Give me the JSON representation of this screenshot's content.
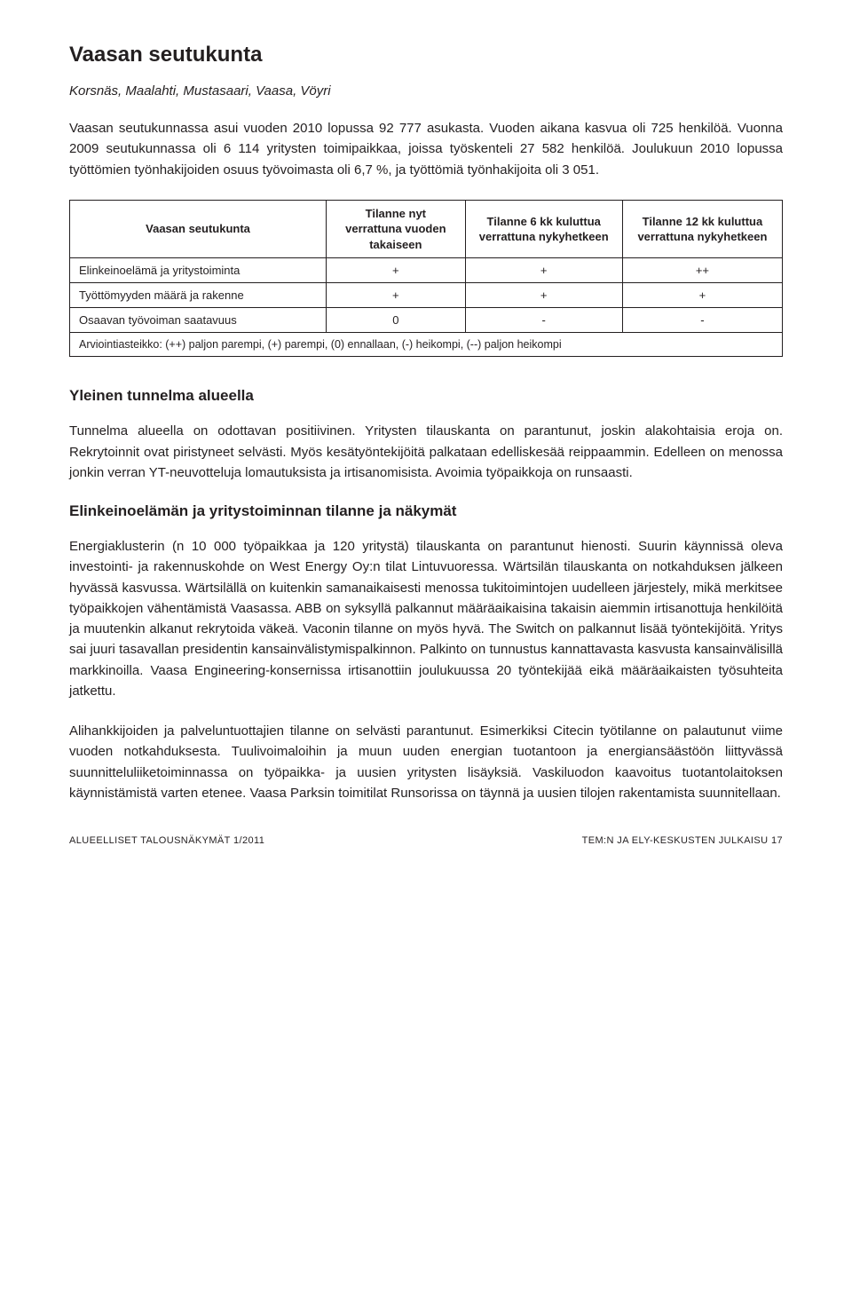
{
  "title": "Vaasan seutukunta",
  "municipalities": "Korsnäs, Maalahti, Mustasaari, Vaasa, Vöyri",
  "intro_para1": "Vaasan seutukunnassa asui vuoden 2010 lopussa 92 777 asukasta. Vuoden aikana kasvua oli 725 henkilöä. Vuonna 2009 seutukunnassa oli 6 114 yritysten toimipaikkaa, joissa työskenteli 27 582 henkilöä. Joulukuun 2010 lopussa työttömien työnhakijoiden osuus työvoimasta oli 6,7 %, ja työttömiä työnhakijoita oli 3 051.",
  "table": {
    "row_header": "Vaasan seutukunta",
    "col_headers": [
      "Tilanne nyt verrattuna vuoden takaiseen",
      "Tilanne 6 kk kuluttua verrattuna nykyhetkeen",
      "Tilanne 12 kk kuluttua verrattuna nykyhetkeen"
    ],
    "rows": [
      {
        "label": "Elinkeinoelämä ja yritystoiminta",
        "vals": [
          "+",
          "+",
          "++"
        ]
      },
      {
        "label": "Työttömyyden määrä ja rakenne",
        "vals": [
          "+",
          "+",
          "+"
        ]
      },
      {
        "label": "Osaavan työvoiman saatavuus",
        "vals": [
          "0",
          "-",
          "-"
        ]
      }
    ],
    "footnote": "Arviointiasteikko: (++) paljon parempi, (+) parempi, (0) ennallaan, (-) heikompi, (--) paljon heikompi"
  },
  "section1_heading": "Yleinen tunnelma alueella",
  "section1_para": "Tunnelma alueella on odottavan positiivinen. Yritysten tilauskanta on parantunut, joskin alakohtaisia eroja on. Rekrytoinnit ovat piristyneet selvästi. Myös kesätyöntekijöitä palkataan edelliskesää reippaammin. Edelleen on menossa jonkin verran YT-neuvotteluja lomautuksista ja irtisanomisista. Avoimia työpaikkoja on runsaasti.",
  "section2_heading": "Elinkeinoelämän ja yritystoiminnan tilanne ja näkymät",
  "section2_para1": "Energiaklusterin (n 10 000 työpaikkaa ja 120 yritystä) tilauskanta on parantunut hienosti. Suurin käynnissä oleva investointi- ja rakennuskohde on West Energy Oy:n tilat Lintuvuoressa. Wärtsilän tilauskanta on notkahduksen jälkeen hyvässä kasvussa. Wärtsilällä on kuitenkin samanaikaisesti menossa tukitoimintojen uudelleen järjestely, mikä merkitsee työpaikkojen vähentämistä Vaasassa. ABB on syksyllä palkannut määräaikaisina takaisin aiemmin irtisanottuja henkilöitä ja muutenkin alkanut rekrytoida väkeä. Vaconin tilanne on myös hyvä. The Switch on palkannut lisää työntekijöitä. Yritys sai juuri tasavallan presidentin kansainvälistymispalkinnon. Palkinto on tunnustus kannattavasta kasvusta kansainvälisillä markkinoilla. Vaasa Engineering-konsernissa irtisanottiin joulukuussa 20 työntekijää eikä määräaikaisten työsuhteita jatkettu.",
  "section2_para2": "Alihankkijoiden ja palveluntuottajien tilanne on selvästi parantunut. Esimerkiksi Citecin työtilanne on palautunut viime vuoden notkahduksesta. Tuulivoimaloihin ja muun uuden energian tuotantoon ja energiansäästöön liittyvässä suunnitteluliiketoiminnassa on työpaikka- ja uusien yritysten lisäyksiä. Vaskiluodon kaavoitus tuotantolaitoksen käynnistämistä varten etenee. Vaasa Parksin toimitilat Runsorissa on täynnä ja uusien tilojen rakentamista suunnitellaan.",
  "footer": {
    "left": "ALUEELLISET TALOUSNÄKYMÄT 1/2011",
    "right": "TEM:N JA ELY-KESKUSTEN JULKAISU",
    "page": "17"
  }
}
